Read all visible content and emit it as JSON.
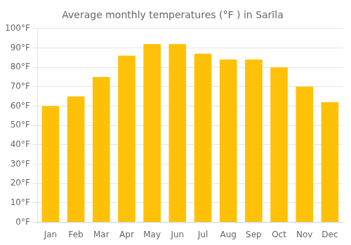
{
  "chart_data": {
    "type": "bar",
    "title": "Average monthly temperatures (°F ) in Sarīla",
    "categories": [
      "Jan",
      "Feb",
      "Mar",
      "Apr",
      "May",
      "Jun",
      "Jul",
      "Aug",
      "Sep",
      "Oct",
      "Nov",
      "Dec"
    ],
    "values": [
      60,
      65,
      75,
      86,
      92,
      92,
      87,
      84,
      84,
      80,
      70,
      62
    ],
    "color": "#FFC107",
    "ylim": [
      0,
      100
    ],
    "yticks": [
      {
        "value": 0,
        "label": "0°F"
      },
      {
        "value": 10,
        "label": "10°F"
      },
      {
        "value": 20,
        "label": "20°F"
      },
      {
        "value": 30,
        "label": "30°F"
      },
      {
        "value": 40,
        "label": "40°F"
      },
      {
        "value": 50,
        "label": "50°F"
      },
      {
        "value": 60,
        "label": "60°F"
      },
      {
        "value": 70,
        "label": "70°F"
      },
      {
        "value": 80,
        "label": "80°F"
      },
      {
        "value": 90,
        "label": "90°F"
      },
      {
        "value": 100,
        "label": "100°F"
      }
    ],
    "grid": true
  }
}
